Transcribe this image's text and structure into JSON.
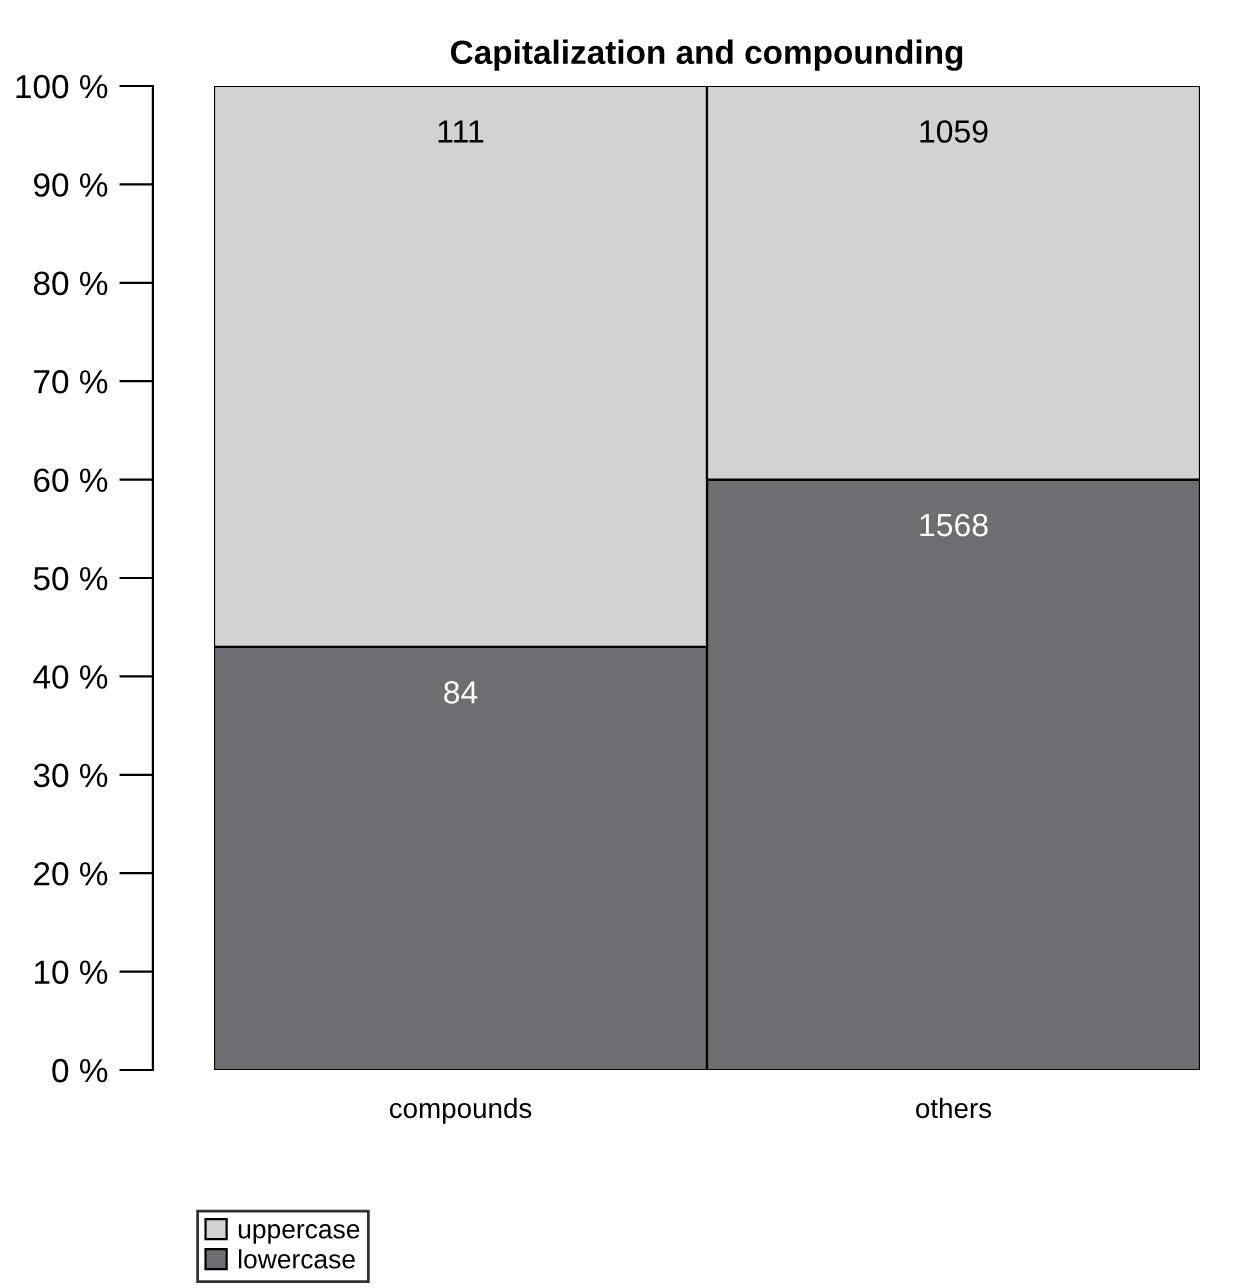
{
  "chart_data": {
    "type": "bar",
    "title": "Capitalization and compounding",
    "categories": [
      "compounds",
      "others"
    ],
    "stacked": true,
    "series": [
      {
        "name": "lowercase",
        "color": "#6d6e71",
        "values": [
          43,
          60
        ]
      },
      {
        "name": "uppercase",
        "color": "#d1d2d4",
        "values": [
          57,
          40
        ]
      }
    ],
    "annotations": [
      {
        "text": "111",
        "x": "compounds",
        "y": 100
      },
      {
        "text": "1059",
        "x": "others",
        "y": 100
      },
      {
        "text": "84",
        "x": "compounds",
        "y": 43
      },
      {
        "text": "1568",
        "x": "others",
        "y": 60
      }
    ],
    "ylim": [
      0,
      100
    ],
    "yticks": [
      {
        "value": 0,
        "label": "0 %"
      },
      {
        "value": 10,
        "label": "10 %"
      },
      {
        "value": 20,
        "label": "20 %"
      },
      {
        "value": 30,
        "label": "30 %"
      },
      {
        "value": 40,
        "label": "40 %"
      },
      {
        "value": 50,
        "label": "50 %"
      },
      {
        "value": 60,
        "label": "60 %"
      },
      {
        "value": 70,
        "label": "70 %"
      },
      {
        "value": 80,
        "label": "80 %"
      },
      {
        "value": 90,
        "label": "90 %"
      },
      {
        "value": 100,
        "label": "100 %"
      }
    ],
    "grid": false,
    "legend": "bottom left"
  }
}
